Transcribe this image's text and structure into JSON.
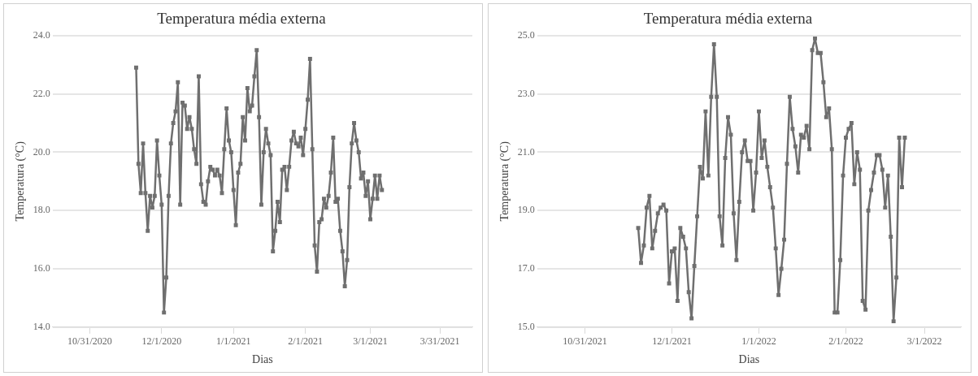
{
  "chart_data": [
    {
      "type": "line",
      "title": "Temperatura média externa",
      "xlabel": "Dias",
      "ylabel": "Temperatura (°C)",
      "marker": "square",
      "line_style": "solid",
      "grid": "y",
      "legend": false,
      "xlim": [
        "2020-10-15",
        "2021-04-14"
      ],
      "xticks": [
        {
          "value": "2020-10-31",
          "label": "10/31/2020"
        },
        {
          "value": "2020-12-01",
          "label": "12/1/2020"
        },
        {
          "value": "2021-01-01",
          "label": "1/1/2021"
        },
        {
          "value": "2021-02-01",
          "label": "2/1/2021"
        },
        {
          "value": "2021-03-01",
          "label": "3/1/2021"
        },
        {
          "value": "2021-03-31",
          "label": "3/31/2021"
        }
      ],
      "ylim": [
        14,
        24
      ],
      "yticks": [
        {
          "value": 14,
          "label": "14.0"
        },
        {
          "value": 16,
          "label": "16.0"
        },
        {
          "value": 18,
          "label": "18.0"
        },
        {
          "value": 20,
          "label": "20.0"
        },
        {
          "value": 22,
          "label": "22.0"
        },
        {
          "value": 24,
          "label": "24.0"
        }
      ],
      "series": [
        {
          "color": "#6f6f6f",
          "x": [
            "2020-11-20",
            "2020-11-21",
            "2020-11-22",
            "2020-11-23",
            "2020-11-24",
            "2020-11-25",
            "2020-11-26",
            "2020-11-27",
            "2020-11-28",
            "2020-11-29",
            "2020-11-30",
            "2020-12-01",
            "2020-12-02",
            "2020-12-03",
            "2020-12-04",
            "2020-12-05",
            "2020-12-06",
            "2020-12-07",
            "2020-12-08",
            "2020-12-09",
            "2020-12-10",
            "2020-12-11",
            "2020-12-12",
            "2020-12-13",
            "2020-12-14",
            "2020-12-15",
            "2020-12-16",
            "2020-12-17",
            "2020-12-18",
            "2020-12-19",
            "2020-12-20",
            "2020-12-21",
            "2020-12-22",
            "2020-12-23",
            "2020-12-24",
            "2020-12-25",
            "2020-12-26",
            "2020-12-27",
            "2020-12-28",
            "2020-12-29",
            "2020-12-30",
            "2020-12-31",
            "2021-01-01",
            "2021-01-02",
            "2021-01-03",
            "2021-01-04",
            "2021-01-05",
            "2021-01-06",
            "2021-01-07",
            "2021-01-08",
            "2021-01-09",
            "2021-01-10",
            "2021-01-11",
            "2021-01-12",
            "2021-01-13",
            "2021-01-14",
            "2021-01-15",
            "2021-01-16",
            "2021-01-17",
            "2021-01-18",
            "2021-01-19",
            "2021-01-20",
            "2021-01-21",
            "2021-01-22",
            "2021-01-23",
            "2021-01-24",
            "2021-01-25",
            "2021-01-26",
            "2021-01-27",
            "2021-01-28",
            "2021-01-29",
            "2021-01-30",
            "2021-01-31",
            "2021-02-01",
            "2021-02-02",
            "2021-02-03",
            "2021-02-04",
            "2021-02-05",
            "2021-02-06",
            "2021-02-07",
            "2021-02-08",
            "2021-02-09",
            "2021-02-10",
            "2021-02-11",
            "2021-02-12",
            "2021-02-13",
            "2021-02-14",
            "2021-02-15",
            "2021-02-16",
            "2021-02-17",
            "2021-02-18",
            "2021-02-19",
            "2021-02-20",
            "2021-02-21",
            "2021-02-22",
            "2021-02-23",
            "2021-02-24",
            "2021-02-25",
            "2021-02-26",
            "2021-02-27",
            "2021-02-28",
            "2021-03-01",
            "2021-03-02",
            "2021-03-03",
            "2021-03-04",
            "2021-03-05",
            "2021-03-06"
          ],
          "values": [
            22.9,
            19.6,
            18.6,
            20.3,
            18.6,
            17.3,
            18.5,
            18.1,
            18.5,
            20.4,
            19.2,
            18.2,
            14.5,
            15.7,
            18.5,
            20.3,
            21.0,
            21.4,
            22.4,
            18.2,
            21.7,
            21.6,
            20.8,
            21.2,
            20.8,
            20.1,
            19.6,
            22.6,
            18.9,
            18.3,
            18.2,
            19.0,
            19.5,
            19.4,
            19.2,
            19.4,
            19.2,
            18.6,
            20.1,
            21.5,
            20.4,
            20.0,
            18.7,
            17.5,
            19.3,
            19.6,
            21.2,
            20.4,
            22.2,
            21.4,
            21.6,
            22.6,
            23.5,
            21.2,
            18.2,
            20.0,
            20.8,
            20.3,
            19.9,
            16.6,
            17.3,
            18.3,
            17.6,
            19.4,
            19.5,
            18.7,
            19.5,
            20.4,
            20.7,
            20.3,
            20.2,
            20.5,
            19.9,
            20.8,
            21.8,
            23.2,
            20.1,
            16.8,
            15.9,
            17.6,
            17.7,
            18.4,
            18.1,
            18.5,
            19.3,
            20.5,
            18.3,
            18.4,
            17.3,
            16.6,
            15.4,
            16.3,
            18.8,
            20.3,
            21.0,
            20.4,
            20.0,
            19.1,
            19.3,
            18.5,
            19.0,
            17.7,
            18.4,
            19.2,
            18.4,
            19.2,
            18.7
          ]
        }
      ]
    },
    {
      "type": "line",
      "title": "Temperatura média externa",
      "xlabel": "Dias",
      "ylabel": "Temperatura (°C)",
      "marker": "square",
      "line_style": "solid",
      "grid": "y",
      "legend": false,
      "xlim": [
        "2021-10-14",
        "2022-03-14"
      ],
      "xticks": [
        {
          "value": "2021-10-31",
          "label": "10/31/2021"
        },
        {
          "value": "2021-12-01",
          "label": "12/1/2021"
        },
        {
          "value": "2022-01-01",
          "label": "1/1/2022"
        },
        {
          "value": "2022-02-01",
          "label": "2/1/2022"
        },
        {
          "value": "2022-03-01",
          "label": "3/1/2022"
        }
      ],
      "ylim": [
        15,
        25
      ],
      "yticks": [
        {
          "value": 15,
          "label": "15.0"
        },
        {
          "value": 17,
          "label": "17.0"
        },
        {
          "value": 19,
          "label": "19.0"
        },
        {
          "value": 21,
          "label": "21.0"
        },
        {
          "value": 23,
          "label": "23.0"
        },
        {
          "value": 25,
          "label": "25.0"
        }
      ],
      "series": [
        {
          "color": "#6f6f6f",
          "x": [
            "2021-11-19",
            "2021-11-20",
            "2021-11-21",
            "2021-11-22",
            "2021-11-23",
            "2021-11-24",
            "2021-11-25",
            "2021-11-26",
            "2021-11-27",
            "2021-11-28",
            "2021-11-29",
            "2021-11-30",
            "2021-12-01",
            "2021-12-02",
            "2021-12-03",
            "2021-12-04",
            "2021-12-05",
            "2021-12-06",
            "2021-12-07",
            "2021-12-08",
            "2021-12-09",
            "2021-12-10",
            "2021-12-11",
            "2021-12-12",
            "2021-12-13",
            "2021-12-14",
            "2021-12-15",
            "2021-12-16",
            "2021-12-17",
            "2021-12-18",
            "2021-12-19",
            "2021-12-20",
            "2021-12-21",
            "2021-12-22",
            "2021-12-23",
            "2021-12-24",
            "2021-12-25",
            "2021-12-26",
            "2021-12-27",
            "2021-12-28",
            "2021-12-29",
            "2021-12-30",
            "2021-12-31",
            "2022-01-01",
            "2022-01-02",
            "2022-01-03",
            "2022-01-04",
            "2022-01-05",
            "2022-01-06",
            "2022-01-07",
            "2022-01-08",
            "2022-01-09",
            "2022-01-10",
            "2022-01-11",
            "2022-01-12",
            "2022-01-13",
            "2022-01-14",
            "2022-01-15",
            "2022-01-16",
            "2022-01-17",
            "2022-01-18",
            "2022-01-19",
            "2022-01-20",
            "2022-01-21",
            "2022-01-22",
            "2022-01-23",
            "2022-01-24",
            "2022-01-25",
            "2022-01-26",
            "2022-01-27",
            "2022-01-28",
            "2022-01-29",
            "2022-01-30",
            "2022-01-31",
            "2022-02-01",
            "2022-02-02",
            "2022-02-03",
            "2022-02-04",
            "2022-02-05",
            "2022-02-06",
            "2022-02-07",
            "2022-02-08",
            "2022-02-09",
            "2022-02-10",
            "2022-02-11",
            "2022-02-12",
            "2022-02-13",
            "2022-02-14",
            "2022-02-15",
            "2022-02-16",
            "2022-02-17",
            "2022-02-18",
            "2022-02-19",
            "2022-02-20",
            "2022-02-21",
            "2022-02-22"
          ],
          "values": [
            18.4,
            17.2,
            17.8,
            19.1,
            19.5,
            17.7,
            18.3,
            18.9,
            19.1,
            19.2,
            19.0,
            16.5,
            17.6,
            17.7,
            15.9,
            18.4,
            18.1,
            17.7,
            16.2,
            15.3,
            17.1,
            18.8,
            20.5,
            20.1,
            22.4,
            20.2,
            22.9,
            24.7,
            22.9,
            18.8,
            17.8,
            20.8,
            22.2,
            21.6,
            18.9,
            17.3,
            19.3,
            21.0,
            21.4,
            20.7,
            20.7,
            19.0,
            20.3,
            22.4,
            20.8,
            21.4,
            20.5,
            19.8,
            19.1,
            17.7,
            16.1,
            17.0,
            18.0,
            20.6,
            22.9,
            21.8,
            21.2,
            20.3,
            21.6,
            21.5,
            21.9,
            21.1,
            24.5,
            24.9,
            24.4,
            24.4,
            23.4,
            22.2,
            22.5,
            21.1,
            15.5,
            15.5,
            17.3,
            20.2,
            21.5,
            21.8,
            22.0,
            19.9,
            21.0,
            20.4,
            15.9,
            15.6,
            19.0,
            19.7,
            20.3,
            20.9,
            20.9,
            20.4,
            19.1,
            20.2,
            18.1,
            15.2,
            16.7,
            21.5,
            19.8,
            21.5
          ]
        }
      ]
    }
  ]
}
